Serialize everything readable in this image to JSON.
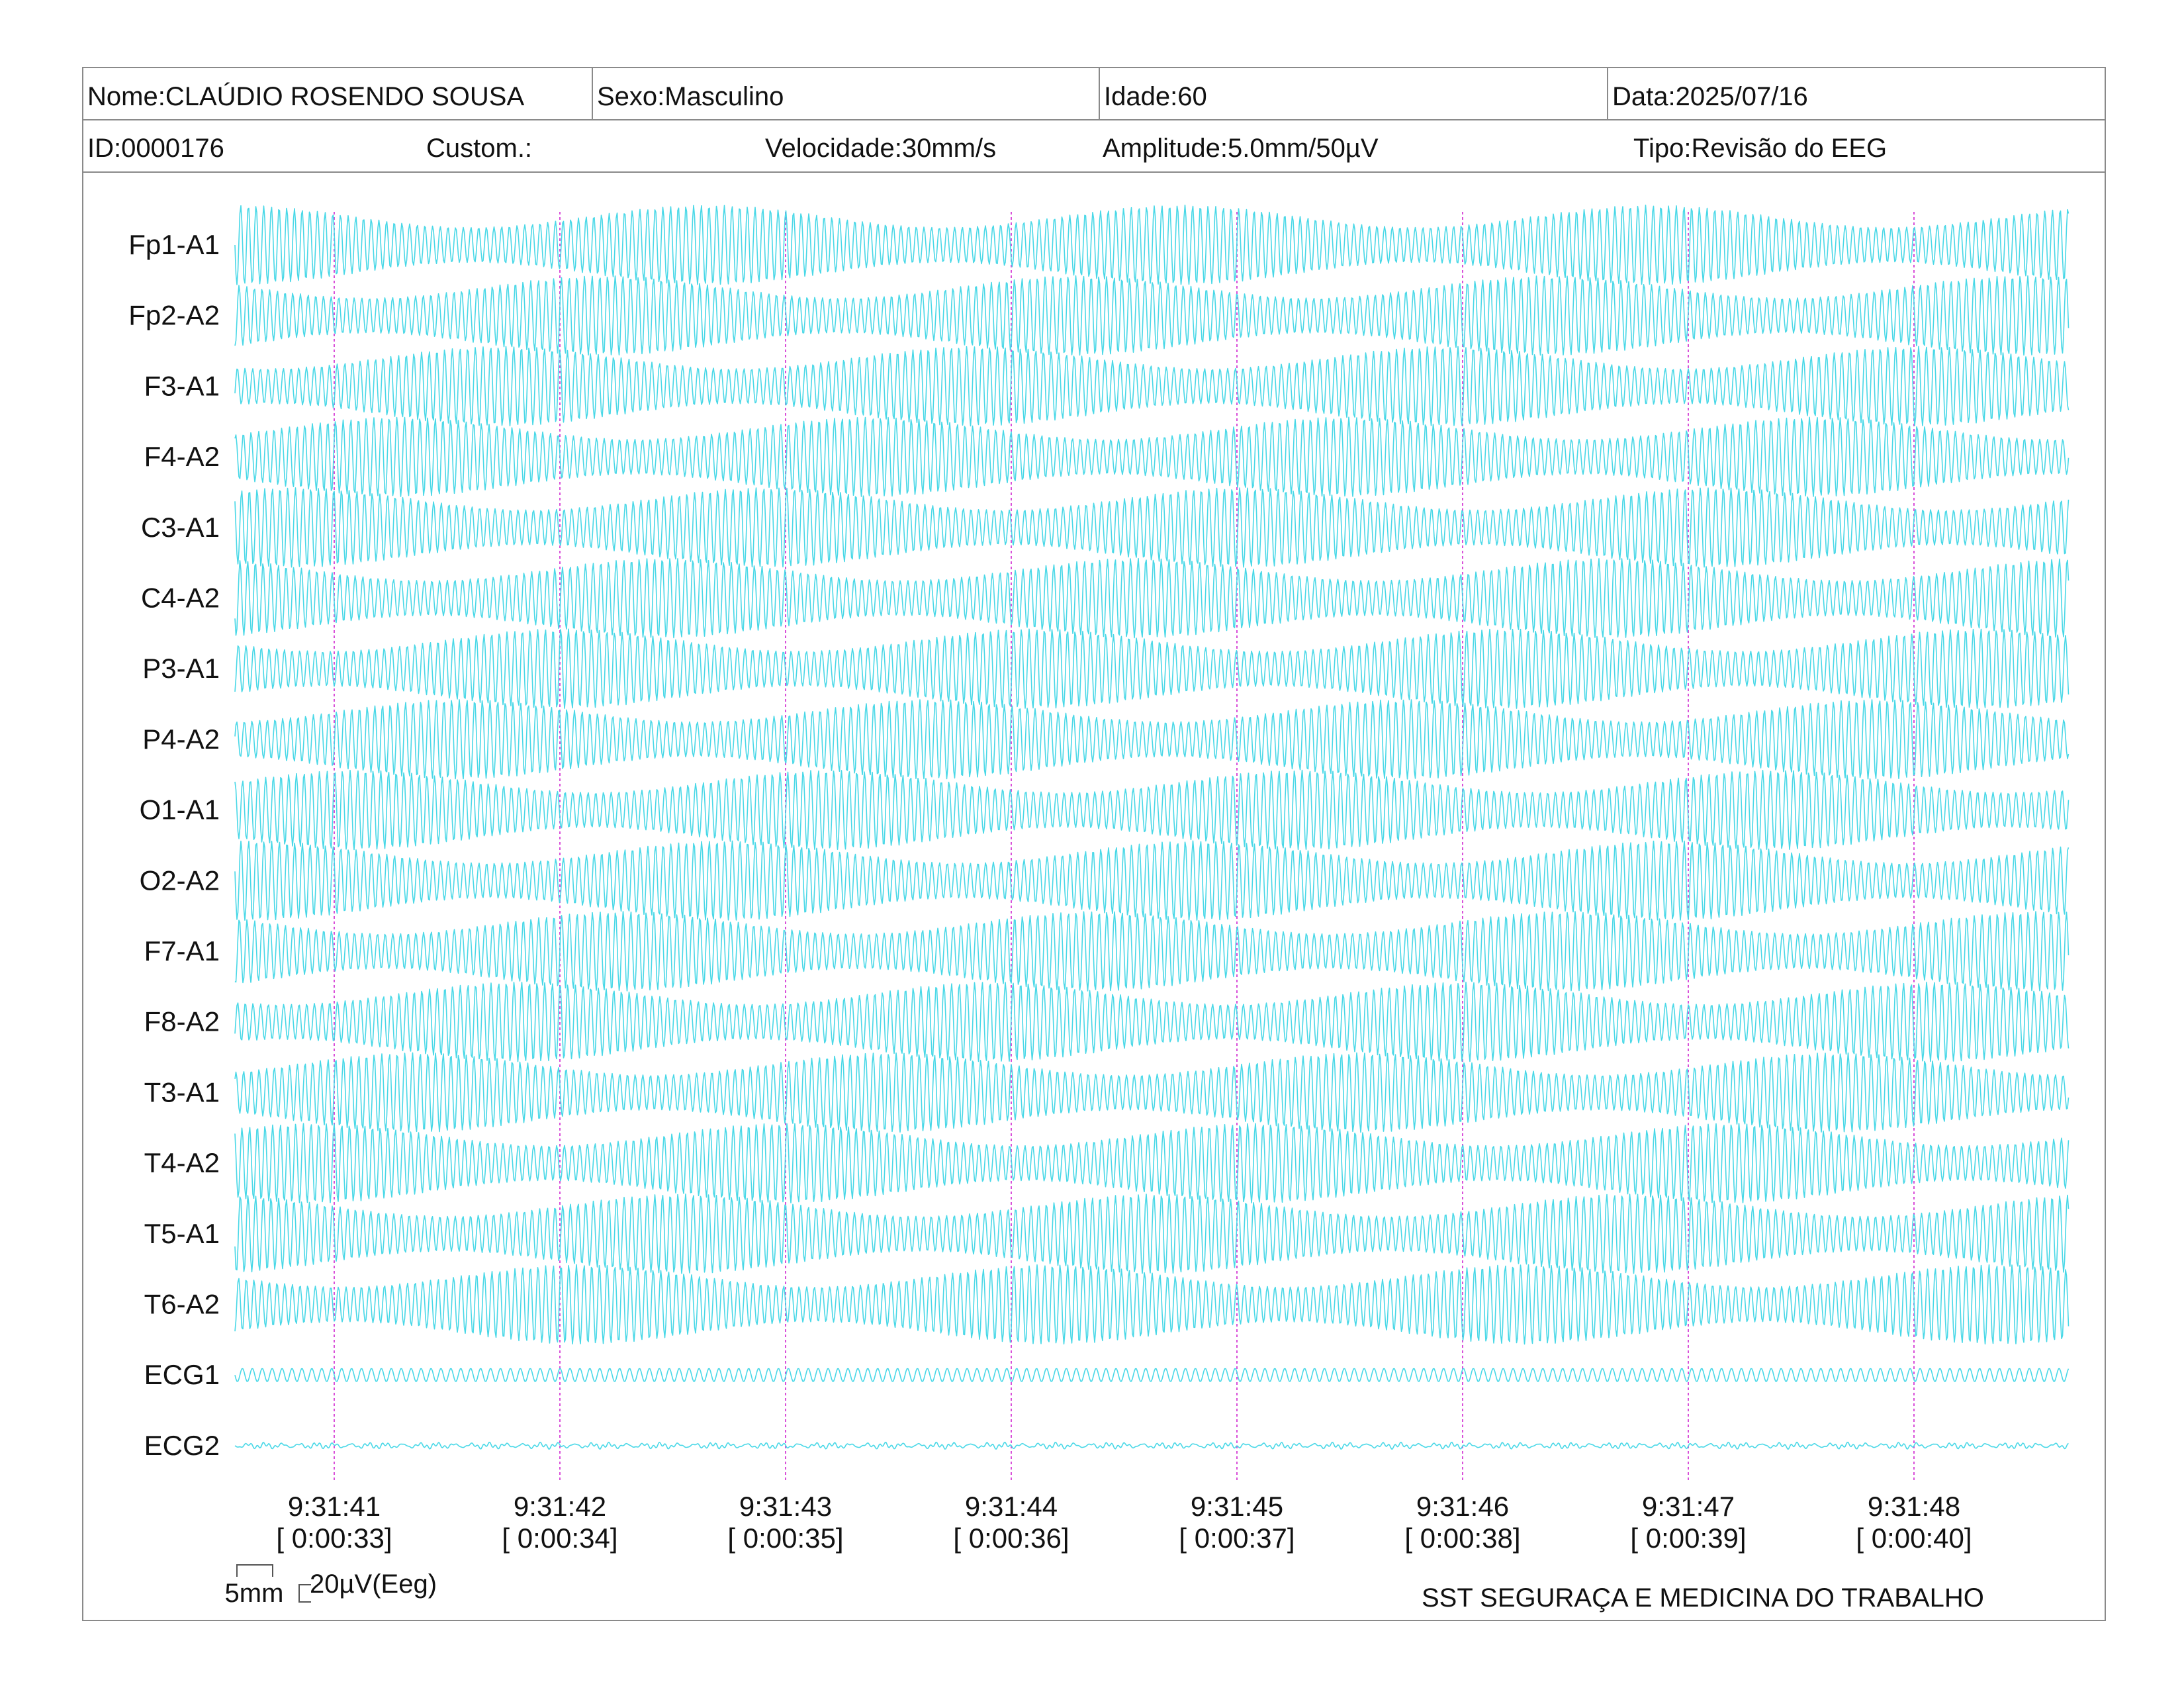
{
  "header": {
    "nome": "Nome:CLAÚDIO ROSENDO SOUSA",
    "sexo": "Sexo:Masculino",
    "idade": "Idade:60",
    "data": "Data:2025/07/16",
    "id": "ID:0000176",
    "custom": "Custom.:",
    "velocidade": "Velocidade:30mm/s",
    "amplitude": "Amplitude:5.0mm/50µV",
    "tipo": "Tipo:Revisão do EEG"
  },
  "chart_data": {
    "type": "line",
    "title": "",
    "channels": [
      "Fp1-A1",
      "Fp2-A2",
      "F3-A1",
      "F4-A2",
      "C3-A1",
      "C4-A2",
      "P3-A1",
      "P4-A2",
      "O1-A1",
      "O2-A2",
      "F7-A1",
      "F8-A2",
      "T3-A1",
      "T4-A2",
      "T5-A1",
      "T6-A2",
      "ECG1",
      "ECG2"
    ],
    "time_ticks": [
      {
        "clock": "9:31:41",
        "elapsed": "[ 0:00:33]"
      },
      {
        "clock": "9:31:42",
        "elapsed": "[ 0:00:34]"
      },
      {
        "clock": "9:31:43",
        "elapsed": "[ 0:00:35]"
      },
      {
        "clock": "9:31:44",
        "elapsed": "[ 0:00:36]"
      },
      {
        "clock": "9:31:45",
        "elapsed": "[ 0:00:37]"
      },
      {
        "clock": "9:31:46",
        "elapsed": "[ 0:00:38]"
      },
      {
        "clock": "9:31:47",
        "elapsed": "[ 0:00:39]"
      },
      {
        "clock": "9:31:48",
        "elapsed": "[ 0:00:40]"
      }
    ],
    "trace_color": "#3fd6e6",
    "marker_color": "#d94fd9",
    "grid": false
  },
  "scale": {
    "time": "5mm",
    "amplitude": "20µV(Eeg)"
  },
  "footer": {
    "institution": "SST SEGURAÇA E MEDICINA DO TRABALHO"
  }
}
